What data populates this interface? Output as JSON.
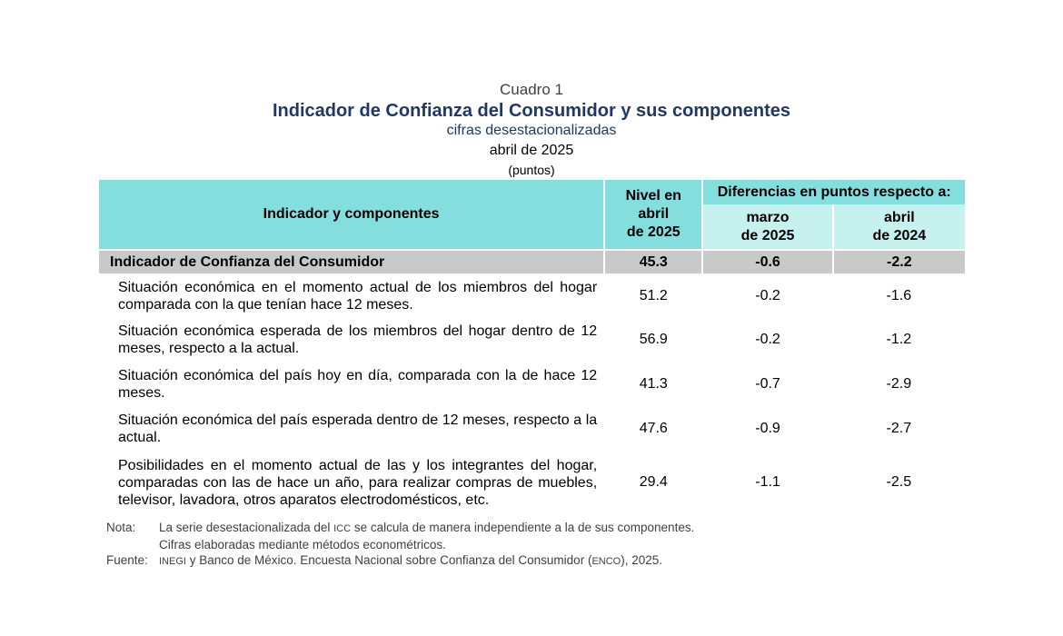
{
  "header": {
    "cuadro": "Cuadro 1",
    "title": "Indicador de Confianza del Consumidor y sus componentes",
    "subtitle": "cifras desestacionalizadas",
    "date": "abril de 2025",
    "unit": "(puntos)"
  },
  "table": {
    "col_indicator": "Indicador y componentes",
    "col_level_l1": "Nivel en",
    "col_level_l2": "abril",
    "col_level_l3": "de 2025",
    "col_diff": "Diferencias en puntos respecto a:",
    "col_prev_l1": "marzo",
    "col_prev_l2": "de 2025",
    "col_year_l1": "abril",
    "col_year_l2": "de 2024",
    "total": {
      "label": "Indicador de Confianza del Consumidor",
      "level": "45.3",
      "diff_month": "-0.6",
      "diff_year": "-2.2"
    },
    "rows": [
      {
        "label": "Situación económica en el momento actual de los miembros del hogar comparada con la que tenían hace 12 meses.",
        "level": "51.2",
        "diff_month": "-0.2",
        "diff_year": "-1.6"
      },
      {
        "label": "Situación económica esperada de los miembros del hogar dentro de 12 meses, respecto a la actual.",
        "level": "56.9",
        "diff_month": "-0.2",
        "diff_year": "-1.2"
      },
      {
        "label": "Situación económica del país hoy en día, comparada con la de hace 12 meses.",
        "level": "41.3",
        "diff_month": "-0.7",
        "diff_year": "-2.9"
      },
      {
        "label": "Situación económica del país esperada dentro de 12 meses, respecto a la actual.",
        "level": "47.6",
        "diff_month": "-0.9",
        "diff_year": "-2.7"
      },
      {
        "label": "Posibilidades en el momento actual de las y los integrantes del hogar, comparadas con las de hace un año, para realizar compras de muebles, televisor, lavadora, otros aparatos electrodomésticos, etc.",
        "level": "29.4",
        "diff_month": "-1.1",
        "diff_year": "-2.5"
      }
    ]
  },
  "notes": {
    "nota_label": "Nota:",
    "nota_pre": "La serie desestacionalizada del ",
    "nota_icc": "ICC",
    "nota_post": " se calcula de manera independiente a la de sus componentes.",
    "nota_line2": "Cifras elaboradas mediante métodos econométricos.",
    "fuente_label": "Fuente:",
    "fuente_inegi": "INEGI",
    "fuente_mid": " y Banco de México. Encuesta Nacional sobre Confianza del Consumidor (",
    "fuente_enco": "ENCO",
    "fuente_end": "), 2025."
  }
}
